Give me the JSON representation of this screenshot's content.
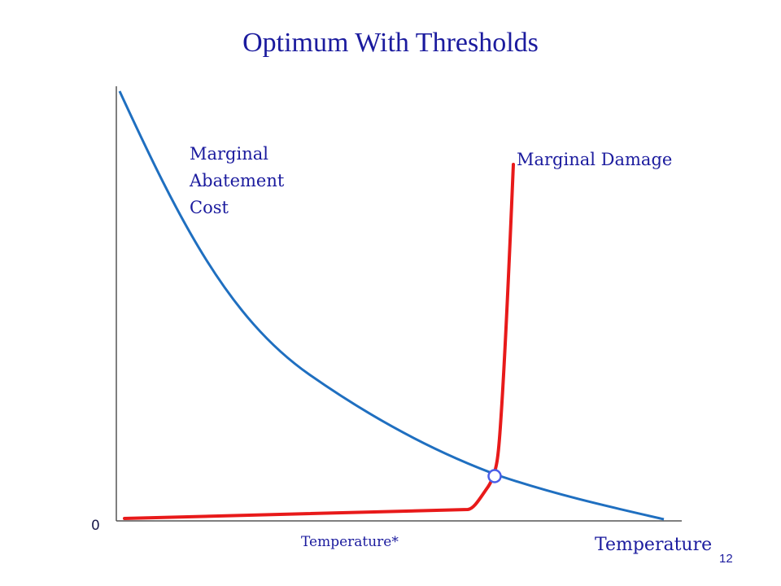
{
  "title": "Optimum With Thresholds",
  "labels": {
    "marginal_abatement_cost": [
      "Marginal",
      "Abatement",
      "Cost"
    ],
    "marginal_damage": "Marginal Damage",
    "origin": "0",
    "temperature_star": "Temperature*",
    "temperature": "Temperature"
  },
  "slide_number": "12",
  "colors": {
    "title": "#1b1b9e",
    "mac_curve": "#1f6fc0",
    "md_curve": "#e81a1a",
    "axes": "#555555",
    "intersection_marker": "#4a5ee8"
  }
}
